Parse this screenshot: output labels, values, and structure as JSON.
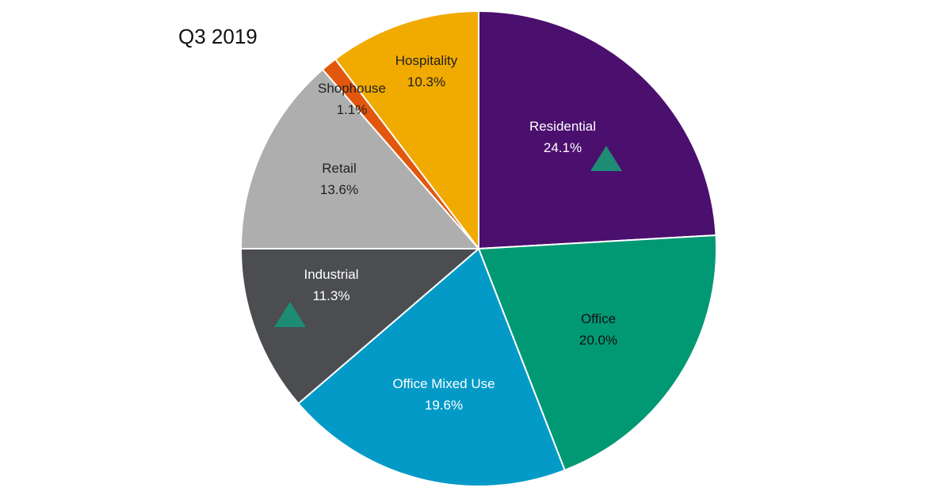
{
  "chart_data": {
    "type": "pie",
    "subtitle": "Q3 2019",
    "start_angle_deg": 0,
    "direction": "clockwise",
    "slices": [
      {
        "label": "Residential",
        "value": 24.1,
        "value_text": "24.1%",
        "color": "#4B0F6E",
        "text_color": "#ffffff",
        "marker": "up-triangle"
      },
      {
        "label": "Office",
        "value": 20.0,
        "value_text": "20.0%",
        "color": "#019874",
        "text_color": "#111111",
        "marker": null
      },
      {
        "label": "Office Mixed Use",
        "value": 19.6,
        "value_text": "19.6%",
        "color": "#039AC8",
        "text_color": "#ffffff",
        "marker": null
      },
      {
        "label": "Industrial",
        "value": 11.3,
        "value_text": "11.3%",
        "color": "#4B4D51",
        "text_color": "#ffffff",
        "marker": "up-triangle"
      },
      {
        "label": "Retail",
        "value": 13.6,
        "value_text": "13.6%",
        "color": "#AEAEAE",
        "text_color": "#222222",
        "marker": null
      },
      {
        "label": "Shophouse",
        "value": 1.1,
        "value_text": "1.1%",
        "color": "#E2570D",
        "text_color": "#222222",
        "marker": null
      },
      {
        "label": "Hospitality",
        "value": 10.3,
        "value_text": "10.3%",
        "color": "#F0AA00",
        "text_color": "#222222",
        "marker": null
      }
    ],
    "marker_color": "#1E8C74"
  }
}
